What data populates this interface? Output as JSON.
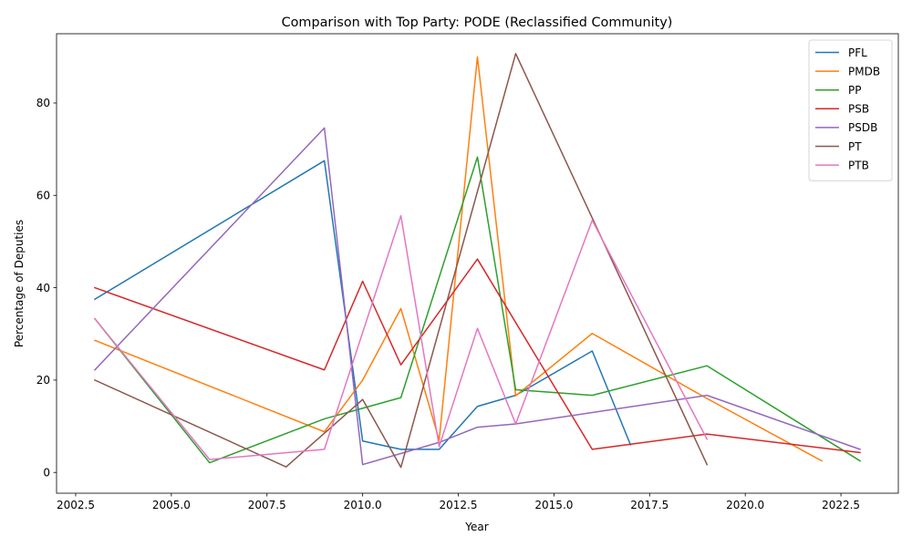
{
  "chart_data": {
    "type": "line",
    "title": "Comparison with Top Party: PODE (Reclassified Community)",
    "xlabel": "Year",
    "ylabel": "Percentage of Deputies",
    "xlim": [
      2002.0,
      2024.0
    ],
    "ylim": [
      -4.5,
      95.0
    ],
    "xticks": [
      2002.5,
      2005.0,
      2007.5,
      2010.0,
      2012.5,
      2015.0,
      2017.5,
      2020.0,
      2022.5
    ],
    "xtick_labels": [
      "2002.5",
      "2005.0",
      "2007.5",
      "2010.0",
      "2012.5",
      "2015.0",
      "2017.5",
      "2020.0",
      "2022.5"
    ],
    "yticks": [
      0,
      20,
      40,
      60,
      80
    ],
    "ytick_labels": [
      "0",
      "20",
      "40",
      "60",
      "80"
    ],
    "grid": false,
    "legend_position": "top-right",
    "series": [
      {
        "name": "PFL",
        "color": "#1f77b4",
        "x": [
          2003,
          2009,
          2010,
          2011,
          2012,
          2013,
          2014,
          2016,
          2017
        ],
        "y": [
          37.5,
          67.5,
          6.8,
          5.0,
          5.0,
          14.3,
          16.7,
          26.3,
          6.0
        ]
      },
      {
        "name": "PMDB",
        "color": "#ff7f0e",
        "x": [
          2003,
          2009,
          2010,
          2011,
          2012,
          2013,
          2014,
          2016,
          2019,
          2022
        ],
        "y": [
          28.6,
          8.8,
          20.0,
          35.5,
          7.0,
          90.0,
          16.6,
          30.1,
          16.0,
          2.5
        ]
      },
      {
        "name": "PP",
        "color": "#2ca02c",
        "x": [
          2003,
          2006,
          2009,
          2011,
          2013,
          2014,
          2016,
          2019,
          2023
        ],
        "y": [
          33.3,
          2.1,
          11.6,
          16.2,
          68.3,
          17.9,
          16.7,
          23.1,
          2.5
        ]
      },
      {
        "name": "PSB",
        "color": "#d62728",
        "x": [
          2003,
          2009,
          2010,
          2011,
          2013,
          2016,
          2019,
          2023
        ],
        "y": [
          40.0,
          22.2,
          41.4,
          23.3,
          46.2,
          5.0,
          8.3,
          4.3
        ]
      },
      {
        "name": "PSDB",
        "color": "#9467bd",
        "x": [
          2003,
          2009,
          2010,
          2012,
          2013,
          2014,
          2019,
          2023
        ],
        "y": [
          22.2,
          74.6,
          1.7,
          6.5,
          9.8,
          10.5,
          16.7,
          5.0
        ]
      },
      {
        "name": "PT",
        "color": "#8c564b",
        "x": [
          2003,
          2008,
          2010,
          2011,
          2014,
          2019
        ],
        "y": [
          20.0,
          1.2,
          15.8,
          1.1,
          90.7,
          1.7
        ]
      },
      {
        "name": "PTB",
        "color": "#e377c2",
        "x": [
          2003,
          2006,
          2009,
          2011,
          2012,
          2013,
          2014,
          2016,
          2019
        ],
        "y": [
          33.3,
          2.8,
          5.0,
          55.6,
          5.6,
          31.2,
          10.5,
          54.6,
          7.2
        ]
      }
    ]
  }
}
